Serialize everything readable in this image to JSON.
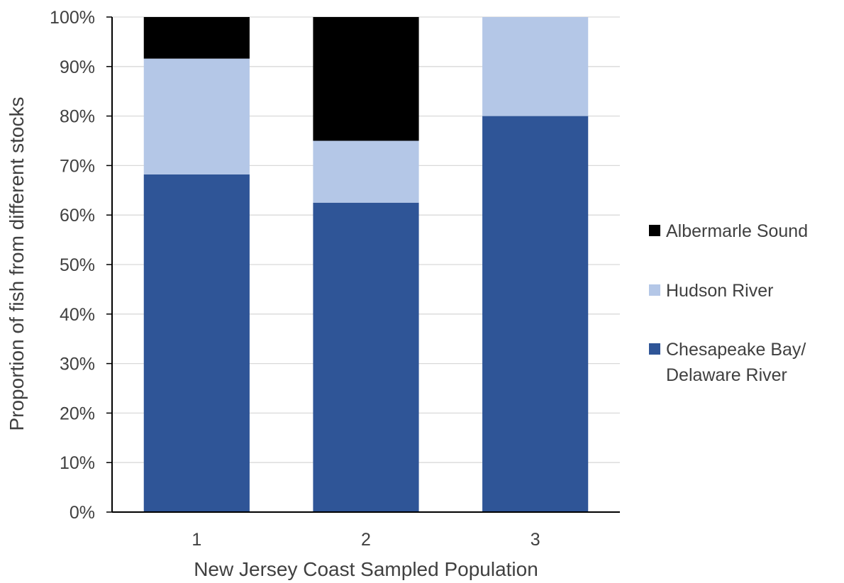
{
  "chart_data": {
    "type": "bar",
    "stacked": true,
    "percent_stacked": true,
    "categories": [
      "1",
      "2",
      "3"
    ],
    "series": [
      {
        "name": "Chesapeake Bay/ Delaware River",
        "legend_lines": [
          "Chesapeake Bay/",
          "Delaware River"
        ],
        "values": [
          68.2,
          62.5,
          80.0
        ],
        "color": "#2f5597"
      },
      {
        "name": "Hudson River",
        "legend_lines": [
          "Hudson River"
        ],
        "values": [
          23.4,
          12.5,
          20.0
        ],
        "color": "#b4c7e7"
      },
      {
        "name": "Albermarle Sound",
        "legend_lines": [
          "Albermarle Sound"
        ],
        "values": [
          8.4,
          25.0,
          0.0
        ],
        "color": "#000000"
      }
    ],
    "xlabel": "New Jersey Coast Sampled Population",
    "ylabel": "Proportion of fish from different stocks",
    "ylim": [
      0,
      100
    ],
    "yticks": [
      "0%",
      "10%",
      "20%",
      "30%",
      "40%",
      "50%",
      "60%",
      "70%",
      "80%",
      "90%",
      "100%"
    ],
    "grid": true,
    "legend_position": "right"
  }
}
